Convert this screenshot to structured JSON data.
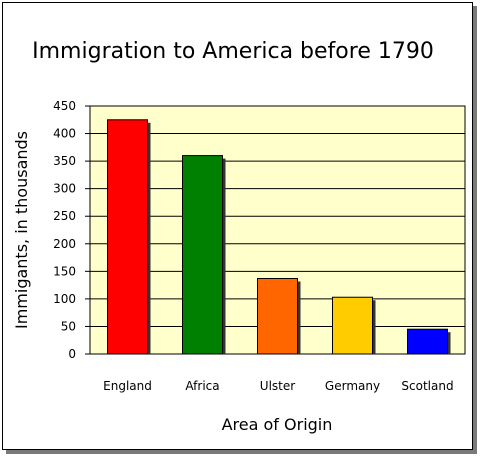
{
  "chart_data": {
    "type": "bar",
    "title": "Immigration to America before 1790",
    "xlabel": "Area of Origin",
    "ylabel": "Immigants, in thousands",
    "categories": [
      "England",
      "Africa",
      "Ulster",
      "Germany",
      "Scotland"
    ],
    "values": [
      425,
      360,
      137,
      103,
      45
    ],
    "bar_colors": [
      "#ff0000",
      "#008000",
      "#ff6600",
      "#ffcc00",
      "#0000ff"
    ],
    "ylim": [
      0,
      450
    ],
    "yticks": [
      0,
      50,
      100,
      150,
      200,
      250,
      300,
      350,
      400,
      450
    ],
    "grid": true,
    "legend": "none",
    "plot_background": "#ffffcc"
  }
}
